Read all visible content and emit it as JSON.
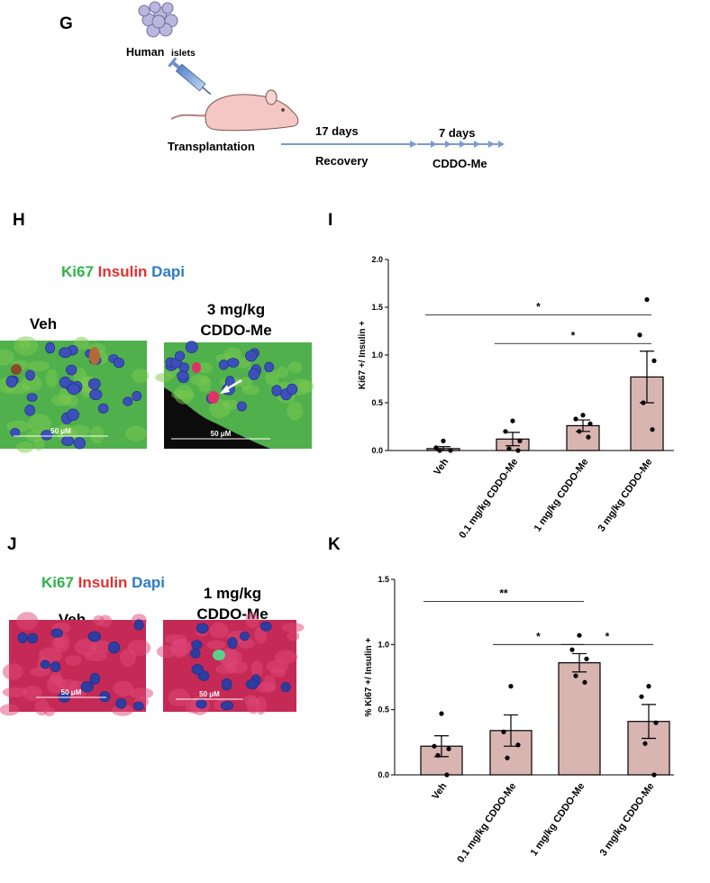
{
  "panels": [
    "G",
    "H",
    "I",
    "J",
    "K"
  ],
  "diagram": {
    "source": [
      "Human",
      "islets"
    ],
    "step1": "Transplantation",
    "step2": {
      "duration": "17 days",
      "label": "Recovery"
    },
    "step3": {
      "duration": "7 days",
      "label": "CDDO-Me"
    }
  },
  "panel_h": {
    "stain": [
      "Ki67",
      "Insulin",
      "Dapi"
    ],
    "labels": [
      "Veh",
      "3 mg/kg",
      "CDDO-Me"
    ],
    "scale_bars": [
      "50 μM",
      "50 μM"
    ]
  },
  "panel_j": {
    "stain": [
      "Ki67",
      "Insulin",
      "Dapi"
    ],
    "labels": [
      "Veh",
      "1 mg/kg",
      "CDDO-Me"
    ],
    "scale_bars": [
      "50 μM",
      "50 μM"
    ]
  },
  "chart_data": [
    {
      "type": "bar",
      "ylabel": "Ki67 +/ Insulin +",
      "categories": [
        "Veh",
        "0.1 mg/kg CDDO-Me",
        "1 mg/kg CDDO-Me",
        "3 mg/kg CDDO-Me"
      ],
      "values": [
        0.02,
        0.12,
        0.26,
        0.77
      ],
      "errors": [
        0.02,
        0.07,
        0.06,
        0.27
      ],
      "points": [
        [
          0.1,
          0.03,
          0,
          0
        ],
        [
          0.31,
          0.2,
          0.1,
          0.02,
          0
        ],
        [
          0.37,
          0.33,
          0.28,
          0.2,
          0.14
        ],
        [
          1.58,
          1.21,
          0.94,
          0.5,
          0.22
        ]
      ],
      "color": "#d9b5b2",
      "ylim": [
        0,
        2.0
      ],
      "yticks": [
        {
          "value": 0,
          "label": "0.0"
        },
        0.5,
        {
          "value": 1,
          "label": "1.0"
        },
        1.5,
        {
          "value": 2,
          "label": "2.0"
        }
      ],
      "annotations": [
        {
          "label": "*",
          "from": "Veh",
          "to": "3 mg/kg CDDO-Me",
          "y": 1.42
        },
        {
          "label": "*",
          "from": "0.1 mg/kg CDDO-Me",
          "to": "3 mg/kg CDDO-Me",
          "y": 1.12
        }
      ]
    },
    {
      "type": "bar",
      "ylabel": "% Ki67 +/ Insulin +",
      "categories": [
        "Veh",
        "0.1 mg/kg CDDO-Me",
        "1 mg/kg CDDO-Me",
        "3 mg/kg CDDO-Me"
      ],
      "values": [
        0.22,
        0.34,
        0.86,
        0.41
      ],
      "errors": [
        0.08,
        0.12,
        0.07,
        0.13
      ],
      "points": [
        [
          0.47,
          0.22,
          0.2,
          0.15,
          0
        ],
        [
          0.68,
          0.33,
          0.23,
          0.13
        ],
        [
          1.07,
          0.96,
          0.89,
          0.76,
          0.71
        ],
        [
          0.68,
          0.6,
          0.4,
          0.24,
          0
        ]
      ],
      "color": "#d9b5b2",
      "ylim": [
        0,
        1.5
      ],
      "yticks": [
        {
          "value": 0,
          "label": "0.0"
        },
        0.5,
        {
          "value": 1,
          "label": "1.0"
        },
        1.5
      ],
      "annotations": [
        {
          "label": "**",
          "from": "Veh",
          "to": "1 mg/kg CDDO-Me",
          "y": 1.33
        },
        {
          "label": "*",
          "from": "0.1 mg/kg CDDO-Me",
          "to": "1 mg/kg CDDO-Me",
          "y": 1.0
        },
        {
          "label": "*",
          "from": "1 mg/kg CDDO-Me",
          "to": "3 mg/kg CDDO-Me",
          "y": 1.0
        }
      ]
    }
  ]
}
